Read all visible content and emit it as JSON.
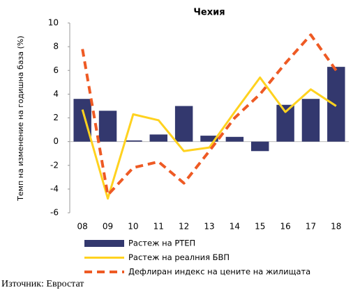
{
  "chart_data": {
    "type": "bar",
    "title": "Чехия",
    "y_label": "Темп на изменение на годишна база (%)",
    "categories": [
      "08",
      "09",
      "10",
      "11",
      "12",
      "13",
      "14",
      "15",
      "16",
      "17",
      "18"
    ],
    "ylim": [
      -6,
      10
    ],
    "yticks": [
      10,
      8,
      6,
      4,
      2,
      0,
      -2,
      -4,
      -6
    ],
    "series": [
      {
        "name": "Растеж на РТЕП",
        "type": "bar",
        "color": "#33386e",
        "values": [
          3.6,
          2.6,
          0.1,
          0.6,
          3.0,
          0.5,
          0.4,
          -0.8,
          3.1,
          3.6,
          6.3
        ]
      },
      {
        "name": "Растеж на реалния БВП",
        "type": "line",
        "color": "#ffd21f",
        "dashed": false,
        "values": [
          2.7,
          -4.8,
          2.3,
          1.8,
          -0.8,
          -0.5,
          2.5,
          5.4,
          2.5,
          4.4,
          3.0
        ]
      },
      {
        "name": "Дефлиран индекс на цените на жилищата",
        "type": "line",
        "color": "#ee5a24",
        "dashed": true,
        "values": [
          7.8,
          -4.5,
          -2.2,
          -1.7,
          -3.5,
          -0.8,
          2.0,
          4.0,
          6.6,
          9.0,
          6.0
        ]
      }
    ]
  },
  "source": "Източник: Евростат"
}
